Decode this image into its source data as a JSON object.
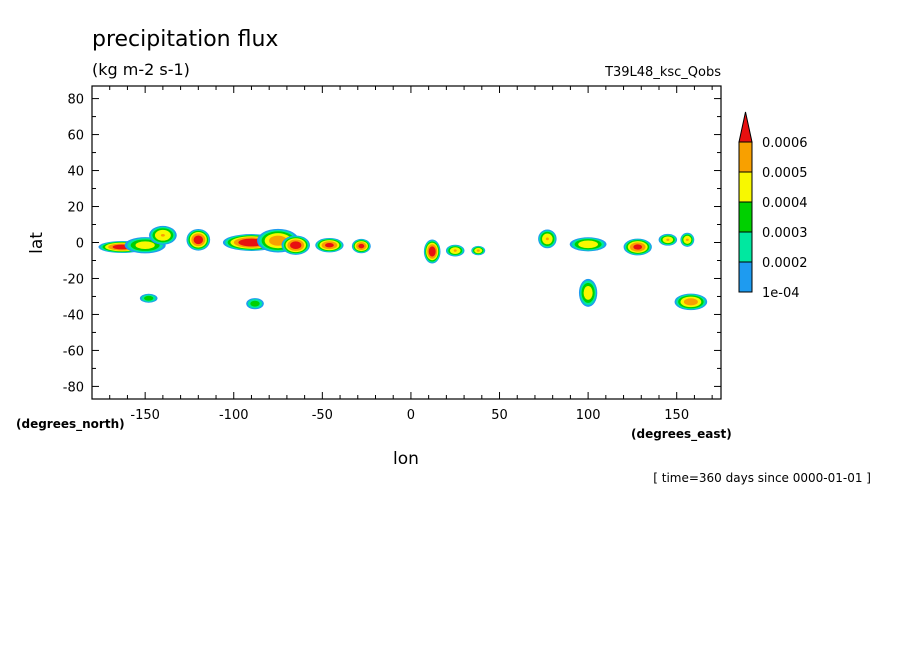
{
  "chart_data": {
    "type": "heatmap",
    "title": "precipitation flux",
    "subtitle": "(kg m-2 s-1)",
    "run_label": "T39L48_ksc_Qobs",
    "xlabel": "lon",
    "ylabel": "lat",
    "x_units": "(degrees_east)",
    "y_units": "(degrees_north)",
    "time_label": "[ time=360 days since 0000-01-01 ]",
    "xlim": [
      -180,
      175
    ],
    "ylim": [
      -87,
      87
    ],
    "x_ticks": [
      -150,
      -100,
      -50,
      0,
      50,
      100,
      150
    ],
    "y_ticks": [
      -80,
      -60,
      -40,
      -20,
      0,
      20,
      40,
      60,
      80
    ],
    "x_tick_labels": [
      "-150",
      "-100",
      "-50",
      "0",
      "50",
      "100",
      "150"
    ],
    "y_tick_labels": [
      "-80",
      "-60",
      "-40",
      "-20",
      "0",
      "20",
      "40",
      "60",
      "80"
    ],
    "colorbar": {
      "levels": [
        "1e-04",
        "0.0002",
        "0.0003",
        "0.0004",
        "0.0005",
        "0.0006"
      ],
      "colors": [
        "#1e9bf0",
        "#00e8a0",
        "#00d000",
        "#f8f800",
        "#f8a000",
        "#e81010"
      ]
    },
    "features": [
      {
        "lon": -163,
        "lat": -2.5,
        "dlon": 10,
        "dlat": 2.5,
        "max": 0.00065
      },
      {
        "lon": -150,
        "lat": -1.5,
        "dlon": 9,
        "dlat": 3.5,
        "max": 0.00045
      },
      {
        "lon": -140,
        "lat": 4,
        "dlon": 6,
        "dlat": 4,
        "max": 0.0005
      },
      {
        "lon": -120,
        "lat": 1.5,
        "dlon": 5,
        "dlat": 4.5,
        "max": 0.00065
      },
      {
        "lon": -90,
        "lat": 0,
        "dlon": 12,
        "dlat": 3.5,
        "max": 0.00068
      },
      {
        "lon": -75,
        "lat": 1,
        "dlon": 9,
        "dlat": 5,
        "max": 0.00055
      },
      {
        "lon": -65,
        "lat": -1.5,
        "dlon": 6,
        "dlat": 4,
        "max": 0.00065
      },
      {
        "lon": -46,
        "lat": -1.5,
        "dlon": 6,
        "dlat": 3,
        "max": 0.00062
      },
      {
        "lon": -28,
        "lat": -2,
        "dlon": 4,
        "dlat": 3,
        "max": 0.00062
      },
      {
        "lon": 12,
        "lat": -5,
        "dlon": 3.5,
        "dlat": 5,
        "max": 0.00066
      },
      {
        "lon": 25,
        "lat": -4.5,
        "dlon": 4,
        "dlat": 2.5,
        "max": 0.0005
      },
      {
        "lon": 38,
        "lat": -4.5,
        "dlon": 3,
        "dlat": 2,
        "max": 0.0005
      },
      {
        "lon": 77,
        "lat": 2,
        "dlon": 4,
        "dlat": 4,
        "max": 0.0005
      },
      {
        "lon": 100,
        "lat": -1,
        "dlon": 8,
        "dlat": 3,
        "max": 0.00048
      },
      {
        "lon": 128,
        "lat": -2.5,
        "dlon": 6,
        "dlat": 3.5,
        "max": 0.00062
      },
      {
        "lon": 145,
        "lat": 1.5,
        "dlon": 4,
        "dlat": 2.5,
        "max": 0.0005
      },
      {
        "lon": 156,
        "lat": 1.5,
        "dlon": 3,
        "dlat": 3,
        "max": 0.0005
      },
      {
        "lon": 100,
        "lat": -28,
        "dlon": 4,
        "dlat": 6,
        "max": 0.00046
      },
      {
        "lon": 158,
        "lat": -33,
        "dlon": 7,
        "dlat": 3.5,
        "max": 0.00055
      },
      {
        "lon": -148,
        "lat": -31,
        "dlon": 4,
        "dlat": 2,
        "max": 0.00035
      },
      {
        "lon": -88,
        "lat": -34,
        "dlon": 4,
        "dlat": 2.5,
        "max": 0.00035
      }
    ]
  }
}
